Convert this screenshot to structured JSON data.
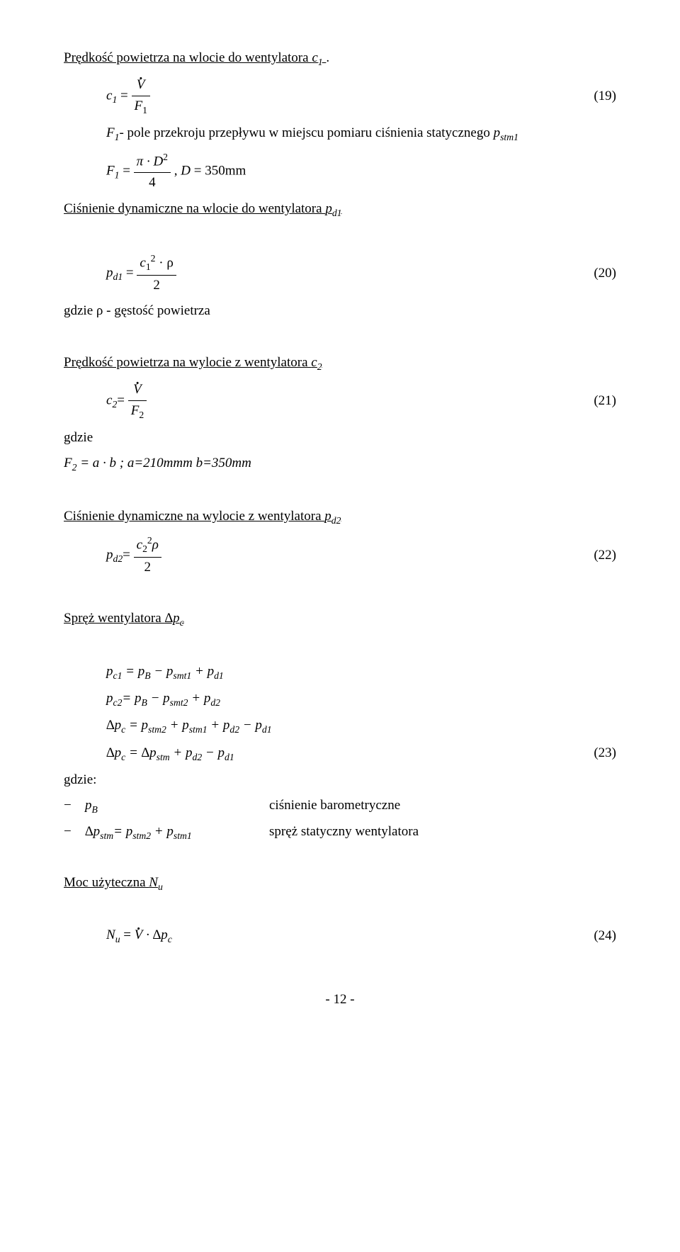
{
  "section1": {
    "title_pre": "Prędkość powietrza na wlocie do wentylatora ",
    "title_var": "c",
    "title_sub": "1",
    "eq1_lhs_var": "c",
    "eq1_lhs_sub": "1",
    "eq1_eq": " = ",
    "eq1_num": "V",
    "eq1_den_var": "F",
    "eq1_den_sub": "1",
    "eq1_num_label": "(19)",
    "caption1_pre": "F",
    "caption1_sub": "1",
    "caption1_body": "- pole przekroju przepływu w miejscu pomiaru ciśnienia statycznego ",
    "caption1_var": "p",
    "caption1_var_sub": "stm1",
    "eq2_lhs_var": "F",
    "eq2_lhs_sub": "1",
    "eq2_eq": " = ",
    "eq2_num_pre": "π · D",
    "eq2_num_sup": "2",
    "eq2_den": "4",
    "eq2_post": ", ",
    "eq2_post_var": "D",
    "eq2_post_rest": " = 350mm",
    "caption2_pre": "Ciśnienie dynamiczne na wlocie do wentylatora ",
    "caption2_var": "p",
    "caption2_var_sub": "d1"
  },
  "section2": {
    "eq3_lhs_var": "p",
    "eq3_lhs_sub": "d1",
    "eq3_eq": " = ",
    "eq3_num_var": "c",
    "eq3_num_sub": "1",
    "eq3_num_sup": "2",
    "eq3_num_post": " · ρ",
    "eq3_den": "2",
    "eq3_label": "(20)",
    "note": "gdzie ρ - gęstość powietrza"
  },
  "section3": {
    "title_pre": "Prędkość powietrza na wylocie z wentylatora ",
    "title_var": "c",
    "title_sub": "2",
    "eq4_lhs_var": "c",
    "eq4_lhs_sub": "2",
    "eq4_eq": "= ",
    "eq4_num": "V",
    "eq4_den_var": "F",
    "eq4_den_sub": "2",
    "eq4_label": "(21)",
    "gdzie": "gdzie",
    "defn_pre": "F",
    "defn_sub": "2",
    "defn_mid": " = a · b ; a=210mmm  b=350mm"
  },
  "section4": {
    "title_pre": "Ciśnienie dynamiczne na wylocie z wentylatora ",
    "title_var": "p",
    "title_sub": "d2",
    "eq5_lhs_var": "p",
    "eq5_lhs_sub": "d2",
    "eq5_eq": "= ",
    "eq5_num_var": "c",
    "eq5_num_sub": "2",
    "eq5_num_sup": "2",
    "eq5_num_post": "ρ",
    "eq5_den": "2",
    "eq5_label": "(22)"
  },
  "section5": {
    "title_pre": "Spręż wentylatora ",
    "title_var": "∆p",
    "title_sub": "c",
    "eq6": "p",
    "eq6_sub1": "c1",
    "eq6_mid1": " = p",
    "eq6_sub2": "B",
    "eq6_mid2": " − p",
    "eq6_sub3": "smt1",
    "eq6_mid3": " + p",
    "eq6_sub4": "d1",
    "eq7": "p",
    "eq7_sub1": "c2",
    "eq7_mid1": "= p",
    "eq7_sub2": "B",
    "eq7_mid2": " − p",
    "eq7_sub3": "smt2",
    "eq7_mid3": " + p",
    "eq7_sub4": "d2",
    "eq8": "∆p",
    "eq8_sub1": "c",
    "eq8_mid1": " = p",
    "eq8_sub2": "stm2",
    "eq8_mid2": " + p",
    "eq8_sub3": "stm1",
    "eq8_mid3": " + p",
    "eq8_sub4": "d2",
    "eq8_mid4": " − p",
    "eq8_sub5": "d1",
    "eq9": "∆p",
    "eq9_sub1": "c",
    "eq9_mid1": " = ∆p",
    "eq9_sub2": "stm",
    "eq9_mid2": " + p",
    "eq9_sub3": "d2",
    "eq9_mid3": " − p",
    "eq9_sub4": "d1",
    "eq9_label": "(23)",
    "gdzie": "gdzie:",
    "b1_l_pre": "p",
    "b1_l_sub": "B",
    "b1_r": "ciśnienie barometryczne",
    "b2_l_pre": "∆p",
    "b2_l_sub": "stm",
    "b2_l_mid1": "= p",
    "b2_l_sub2": "stm2",
    "b2_l_mid2": " + p",
    "b2_l_sub3": "stm1",
    "b2_r": "spręż statyczny wentylatora"
  },
  "section6": {
    "title_pre": "Moc użyteczna ",
    "title_var": "N",
    "title_sub": "u",
    "eq10_lhs_var": "N",
    "eq10_lhs_sub": "u",
    "eq10_mid": " = ",
    "eq10_v": "V",
    "eq10_post": " · ∆p",
    "eq10_post_sub": "c",
    "eq10_label": "(24)"
  },
  "footer": "- 12 -"
}
